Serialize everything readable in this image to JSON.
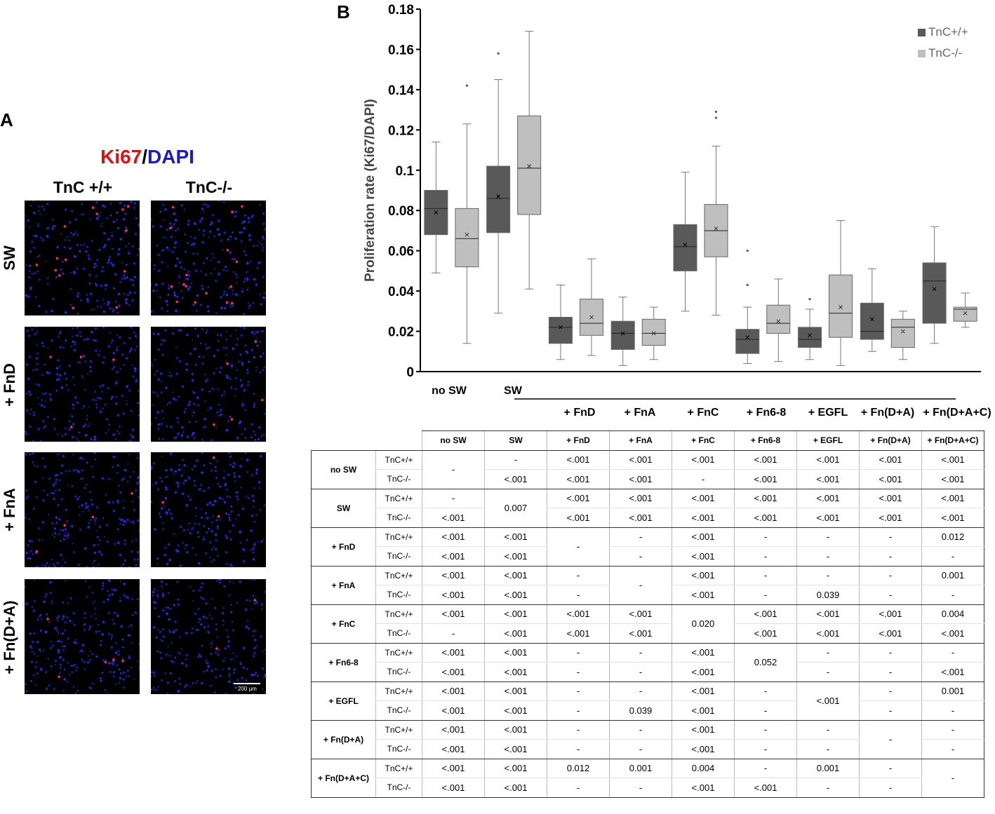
{
  "panel_a": {
    "letter": "A",
    "title_red": "Ki67",
    "title_sep": "/",
    "title_blue": "DAPI",
    "columns": [
      "TnC +/+",
      "TnC-/-"
    ],
    "rows": [
      "SW",
      "+ FnD",
      "+ FnA",
      "+ Fn(D+A)"
    ],
    "scale_bar": "200 µm"
  },
  "panel_b": {
    "letter": "B",
    "legend": [
      "TnC+/+",
      "TnC-/-"
    ],
    "x_top_labels": [
      "no SW",
      "SW"
    ],
    "x_bottom_labels": [
      "+ FnD",
      "+ FnA",
      "+ FnC",
      "+ Fn6-8",
      "+ EGFL",
      "+ Fn(D+A)",
      "+ Fn(D+A+C)"
    ]
  },
  "colors": {
    "tnc_wt": "#595959",
    "tnc_ko": "#bfbfbf",
    "dapi": "#2a2aff",
    "ki67": "#ff2a6a"
  },
  "chart_data": {
    "type": "box",
    "ylabel": "Proliferation rate (Ki67/DAPI)",
    "ylim": [
      0,
      0.18
    ],
    "yticks": [
      "0",
      "0.02",
      "0.04",
      "0.06",
      "0.08",
      "0.1",
      "0.12",
      "0.14",
      "0.16",
      "0.18"
    ],
    "categories": [
      "no SW",
      "SW",
      "+ FnD",
      "+ FnA",
      "+ FnC",
      "+ Fn6-8",
      "+ EGFL",
      "+ Fn(D+A)",
      "+ Fn(D+A+C)"
    ],
    "series": [
      {
        "name": "TnC+/+",
        "boxes": [
          {
            "min": 0.049,
            "q1": 0.068,
            "median": 0.081,
            "q3": 0.09,
            "max": 0.114,
            "mean": 0.079,
            "outliers": []
          },
          {
            "min": 0.029,
            "q1": 0.069,
            "median": 0.086,
            "q3": 0.102,
            "max": 0.145,
            "mean": 0.087,
            "outliers": [
              0.158
            ]
          },
          {
            "min": 0.006,
            "q1": 0.014,
            "median": 0.022,
            "q3": 0.027,
            "max": 0.043,
            "mean": 0.022,
            "outliers": []
          },
          {
            "min": 0.003,
            "q1": 0.011,
            "median": 0.019,
            "q3": 0.025,
            "max": 0.037,
            "mean": 0.019,
            "outliers": []
          },
          {
            "min": 0.03,
            "q1": 0.05,
            "median": 0.062,
            "q3": 0.073,
            "max": 0.099,
            "mean": 0.063,
            "outliers": []
          },
          {
            "min": 0.004,
            "q1": 0.009,
            "median": 0.016,
            "q3": 0.021,
            "max": 0.032,
            "mean": 0.017,
            "outliers": [
              0.043,
              0.06
            ]
          },
          {
            "min": 0.006,
            "q1": 0.012,
            "median": 0.016,
            "q3": 0.022,
            "max": 0.031,
            "mean": 0.018,
            "outliers": [
              0.036
            ]
          },
          {
            "min": 0.01,
            "q1": 0.016,
            "median": 0.02,
            "q3": 0.034,
            "max": 0.051,
            "mean": 0.026,
            "outliers": []
          },
          {
            "min": 0.014,
            "q1": 0.024,
            "median": 0.045,
            "q3": 0.054,
            "max": 0.072,
            "mean": 0.041,
            "outliers": []
          }
        ]
      },
      {
        "name": "TnC-/-",
        "boxes": [
          {
            "min": 0.014,
            "q1": 0.052,
            "median": 0.066,
            "q3": 0.081,
            "max": 0.123,
            "mean": 0.068,
            "outliers": [
              0.142
            ]
          },
          {
            "min": 0.041,
            "q1": 0.078,
            "median": 0.101,
            "q3": 0.127,
            "max": 0.169,
            "mean": 0.102,
            "outliers": []
          },
          {
            "min": 0.008,
            "q1": 0.018,
            "median": 0.024,
            "q3": 0.036,
            "max": 0.056,
            "mean": 0.027,
            "outliers": []
          },
          {
            "min": 0.006,
            "q1": 0.013,
            "median": 0.019,
            "q3": 0.026,
            "max": 0.032,
            "mean": 0.019,
            "outliers": []
          },
          {
            "min": 0.028,
            "q1": 0.057,
            "median": 0.07,
            "q3": 0.083,
            "max": 0.112,
            "mean": 0.071,
            "outliers": [
              0.126,
              0.129
            ]
          },
          {
            "min": 0.005,
            "q1": 0.019,
            "median": 0.024,
            "q3": 0.033,
            "max": 0.046,
            "mean": 0.025,
            "outliers": []
          },
          {
            "min": 0.003,
            "q1": 0.017,
            "median": 0.029,
            "q3": 0.048,
            "max": 0.075,
            "mean": 0.032,
            "outliers": []
          },
          {
            "min": 0.006,
            "q1": 0.012,
            "median": 0.022,
            "q3": 0.026,
            "max": 0.03,
            "mean": 0.02,
            "outliers": []
          },
          {
            "min": 0.022,
            "q1": 0.025,
            "median": 0.031,
            "q3": 0.032,
            "max": 0.039,
            "mean": 0.029,
            "outliers": []
          }
        ]
      }
    ]
  },
  "pvalue_table": {
    "headers": [
      "no SW",
      "SW",
      "+ FnD",
      "+ FnA",
      "+ FnC",
      "+ Fn6-8",
      "+ EGFL",
      "+ Fn(D+A)",
      "+ Fn(D+A+C)"
    ],
    "genotypes": [
      "TnC+/+",
      "TnC-/-"
    ],
    "groups": [
      {
        "label": "no SW",
        "cells": [
          {
            "merged": "-"
          },
          {
            "top": "-",
            "bottom": "<.001"
          },
          {
            "top": "<.001",
            "bottom": "<.001"
          },
          {
            "top": "<.001",
            "bottom": "<.001"
          },
          {
            "top": "<.001",
            "bottom": "-"
          },
          {
            "top": "<.001",
            "bottom": "<.001"
          },
          {
            "top": "<.001",
            "bottom": "<.001"
          },
          {
            "top": "<.001",
            "bottom": "<.001"
          },
          {
            "top": "<.001",
            "bottom": "<.001"
          }
        ]
      },
      {
        "label": "SW",
        "cells": [
          {
            "top": "-",
            "bottom": "<.001"
          },
          {
            "merged": "0.007"
          },
          {
            "top": "<.001",
            "bottom": "<.001"
          },
          {
            "top": "<.001",
            "bottom": "<.001"
          },
          {
            "top": "<.001",
            "bottom": "<.001"
          },
          {
            "top": "<.001",
            "bottom": "<.001"
          },
          {
            "top": "<.001",
            "bottom": "<.001"
          },
          {
            "top": "<.001",
            "bottom": "<.001"
          },
          {
            "top": "<.001",
            "bottom": "<.001"
          }
        ]
      },
      {
        "label": "+ FnD",
        "cells": [
          {
            "top": "<.001",
            "bottom": "<.001"
          },
          {
            "top": "<.001",
            "bottom": "<.001"
          },
          {
            "merged": "-"
          },
          {
            "top": "-",
            "bottom": "-"
          },
          {
            "top": "<.001",
            "bottom": "<.001"
          },
          {
            "top": "-",
            "bottom": "-"
          },
          {
            "top": "-",
            "bottom": "-"
          },
          {
            "top": "-",
            "bottom": "-"
          },
          {
            "top": "0.012",
            "bottom": "-"
          }
        ]
      },
      {
        "label": "+ FnA",
        "cells": [
          {
            "top": "<.001",
            "bottom": "<.001"
          },
          {
            "top": "<.001",
            "bottom": "<.001"
          },
          {
            "top": "-",
            "bottom": "-"
          },
          {
            "merged": "-"
          },
          {
            "top": "<.001",
            "bottom": "<.001"
          },
          {
            "top": "-",
            "bottom": "-"
          },
          {
            "top": "-",
            "bottom": "0.039"
          },
          {
            "top": "-",
            "bottom": "-"
          },
          {
            "top": "0.001",
            "bottom": "-"
          }
        ]
      },
      {
        "label": "+ FnC",
        "cells": [
          {
            "top": "<.001",
            "bottom": "-"
          },
          {
            "top": "<.001",
            "bottom": "<.001"
          },
          {
            "top": "<.001",
            "bottom": "<.001"
          },
          {
            "top": "<.001",
            "bottom": "<.001"
          },
          {
            "merged": "0.020"
          },
          {
            "top": "<.001",
            "bottom": "<.001"
          },
          {
            "top": "<.001",
            "bottom": "<.001"
          },
          {
            "top": "<.001",
            "bottom": "<.001"
          },
          {
            "top": "0.004",
            "bottom": "<.001"
          }
        ]
      },
      {
        "label": "+ Fn6-8",
        "cells": [
          {
            "top": "<.001",
            "bottom": "<.001"
          },
          {
            "top": "<.001",
            "bottom": "<.001"
          },
          {
            "top": "-",
            "bottom": "-"
          },
          {
            "top": "-",
            "bottom": "-"
          },
          {
            "top": "<.001",
            "bottom": "<.001"
          },
          {
            "merged": "0.052"
          },
          {
            "top": "-",
            "bottom": "-"
          },
          {
            "top": "-",
            "bottom": "-"
          },
          {
            "top": "-",
            "bottom": "<.001"
          }
        ]
      },
      {
        "label": "+ EGFL",
        "cells": [
          {
            "top": "<.001",
            "bottom": "<.001"
          },
          {
            "top": "<.001",
            "bottom": "<.001"
          },
          {
            "top": "-",
            "bottom": "-"
          },
          {
            "top": "-",
            "bottom": "0.039"
          },
          {
            "top": "<.001",
            "bottom": "<.001"
          },
          {
            "top": "-",
            "bottom": "-"
          },
          {
            "merged": "<.001"
          },
          {
            "top": "-",
            "bottom": "-"
          },
          {
            "top": "0.001",
            "bottom": "-"
          }
        ]
      },
      {
        "label": "+ Fn(D+A)",
        "cells": [
          {
            "top": "<.001",
            "bottom": "<.001"
          },
          {
            "top": "<.001",
            "bottom": "<.001"
          },
          {
            "top": "-",
            "bottom": "-"
          },
          {
            "top": "-",
            "bottom": "-"
          },
          {
            "top": "<.001",
            "bottom": "<.001"
          },
          {
            "top": "-",
            "bottom": "-"
          },
          {
            "top": "-",
            "bottom": "-"
          },
          {
            "merged": "-"
          },
          {
            "top": "-",
            "bottom": "-"
          }
        ]
      },
      {
        "label": "+ Fn(D+A+C)",
        "cells": [
          {
            "top": "<.001",
            "bottom": "<.001"
          },
          {
            "top": "<.001",
            "bottom": "<.001"
          },
          {
            "top": "0.012",
            "bottom": "-"
          },
          {
            "top": "0.001",
            "bottom": "-"
          },
          {
            "top": "0.004",
            "bottom": "<.001"
          },
          {
            "top": "-",
            "bottom": "<.001"
          },
          {
            "top": "0.001",
            "bottom": "-"
          },
          {
            "top": "-",
            "bottom": "-"
          },
          {
            "merged": "-"
          }
        ]
      }
    ]
  }
}
